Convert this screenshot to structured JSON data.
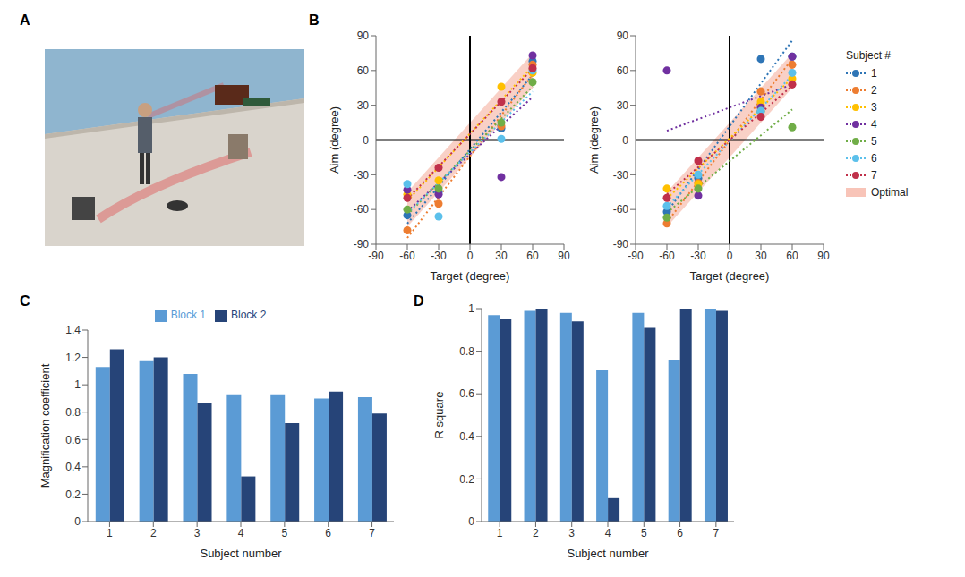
{
  "chart_data": [
    {
      "panel": "A",
      "type": "image"
    },
    {
      "panel": "B",
      "type": "scatter",
      "xlabel": "Target (degree)",
      "ylabel": "Aim (degree)",
      "xlim": [
        -90,
        90
      ],
      "xticks": [
        -90,
        -60,
        -30,
        0,
        30,
        60,
        90
      ],
      "ylim": [
        -90,
        90
      ],
      "yticks": [
        -90,
        -60,
        -30,
        0,
        30,
        60,
        90
      ],
      "x": [
        -60,
        -30,
        30,
        60
      ],
      "series": [
        {
          "name": "1",
          "color": "#2e75b6",
          "values": [
            -65,
            -45,
            10,
            68
          ]
        },
        {
          "name": "2",
          "color": "#ed7d31",
          "values": [
            -78,
            -55,
            12,
            65
          ]
        },
        {
          "name": "3",
          "color": "#ffc000",
          "values": [
            -47,
            -35,
            46,
            58
          ]
        },
        {
          "name": "4",
          "color": "#7030a0",
          "values": [
            -43,
            -47,
            -32,
            73
          ]
        },
        {
          "name": "5",
          "color": "#70ad47",
          "values": [
            -60,
            -42,
            15,
            50
          ]
        },
        {
          "name": "6",
          "color": "#5bc0eb",
          "values": [
            -38,
            -66,
            1,
            60
          ]
        },
        {
          "name": "7",
          "color": "#c0304a",
          "values": [
            -50,
            -24,
            33,
            62
          ]
        }
      ],
      "optimal": {
        "name": "Optimal",
        "color": "#f8c4b8",
        "x": [
          -60,
          60
        ],
        "lower": [
          -75,
          45
        ],
        "upper": [
          -45,
          75
        ]
      }
    },
    {
      "type": "scatter",
      "xlabel": "Target (degree)",
      "ylabel": "Aim (degree)",
      "xlim": [
        -90,
        90
      ],
      "xticks": [
        -90,
        -60,
        -30,
        0,
        30,
        60,
        90
      ],
      "ylim": [
        -90,
        90
      ],
      "yticks": [
        -90,
        -60,
        -30,
        0,
        30,
        60,
        90
      ],
      "x": [
        -60,
        -30,
        30,
        60
      ],
      "series": [
        {
          "name": "1",
          "color": "#2e75b6",
          "values": [
            -62,
            -33,
            70,
            72
          ]
        },
        {
          "name": "2",
          "color": "#ed7d31",
          "values": [
            -72,
            -37,
            42,
            65
          ]
        },
        {
          "name": "3",
          "color": "#ffc000",
          "values": [
            -42,
            -38,
            33,
            53
          ]
        },
        {
          "name": "4",
          "color": "#7030a0",
          "values": [
            60,
            -48,
            28,
            72
          ]
        },
        {
          "name": "5",
          "color": "#70ad47",
          "values": [
            -67,
            -42,
            25,
            11
          ]
        },
        {
          "name": "6",
          "color": "#5bc0eb",
          "values": [
            -57,
            -30,
            25,
            58
          ]
        },
        {
          "name": "7",
          "color": "#c0304a",
          "values": [
            -50,
            -18,
            20,
            48
          ]
        }
      ],
      "optimal": {
        "name": "Optimal",
        "color": "#f8c4b8",
        "x": [
          -60,
          60
        ],
        "lower": [
          -75,
          45
        ],
        "upper": [
          -45,
          75
        ]
      },
      "legend": "right",
      "legend_title": "Subject #"
    },
    {
      "panel": "C",
      "type": "bar",
      "xlabel": "Subject number",
      "ylabel": "Magnification coefficient",
      "categories": [
        "1",
        "2",
        "3",
        "4",
        "5",
        "6",
        "7"
      ],
      "ylim": [
        0,
        1.4
      ],
      "yticks": [
        0,
        0.2,
        0.4,
        0.6,
        0.8,
        1,
        1.2,
        1.4
      ],
      "series": [
        {
          "name": "Block 1",
          "color": "#5b9bd5",
          "values": [
            1.13,
            1.18,
            1.08,
            0.93,
            0.93,
            0.9,
            0.91
          ]
        },
        {
          "name": "Block 2",
          "color": "#264478",
          "values": [
            1.26,
            1.2,
            0.87,
            0.33,
            0.72,
            0.95,
            0.79
          ]
        }
      ],
      "legend": "top"
    },
    {
      "panel": "D",
      "type": "bar",
      "xlabel": "Subject number",
      "ylabel": "R square",
      "categories": [
        "1",
        "2",
        "3",
        "4",
        "5",
        "6",
        "7"
      ],
      "ylim": [
        0,
        1
      ],
      "yticks": [
        0,
        0.2,
        0.4,
        0.6,
        0.8,
        1
      ],
      "series": [
        {
          "name": "Block 1",
          "color": "#5b9bd5",
          "values": [
            0.97,
            0.99,
            0.98,
            0.71,
            0.98,
            0.76,
            1.0
          ]
        },
        {
          "name": "Block 2",
          "color": "#264478",
          "values": [
            0.95,
            1.0,
            0.94,
            0.11,
            0.91,
            1.0,
            0.99
          ]
        }
      ]
    }
  ]
}
